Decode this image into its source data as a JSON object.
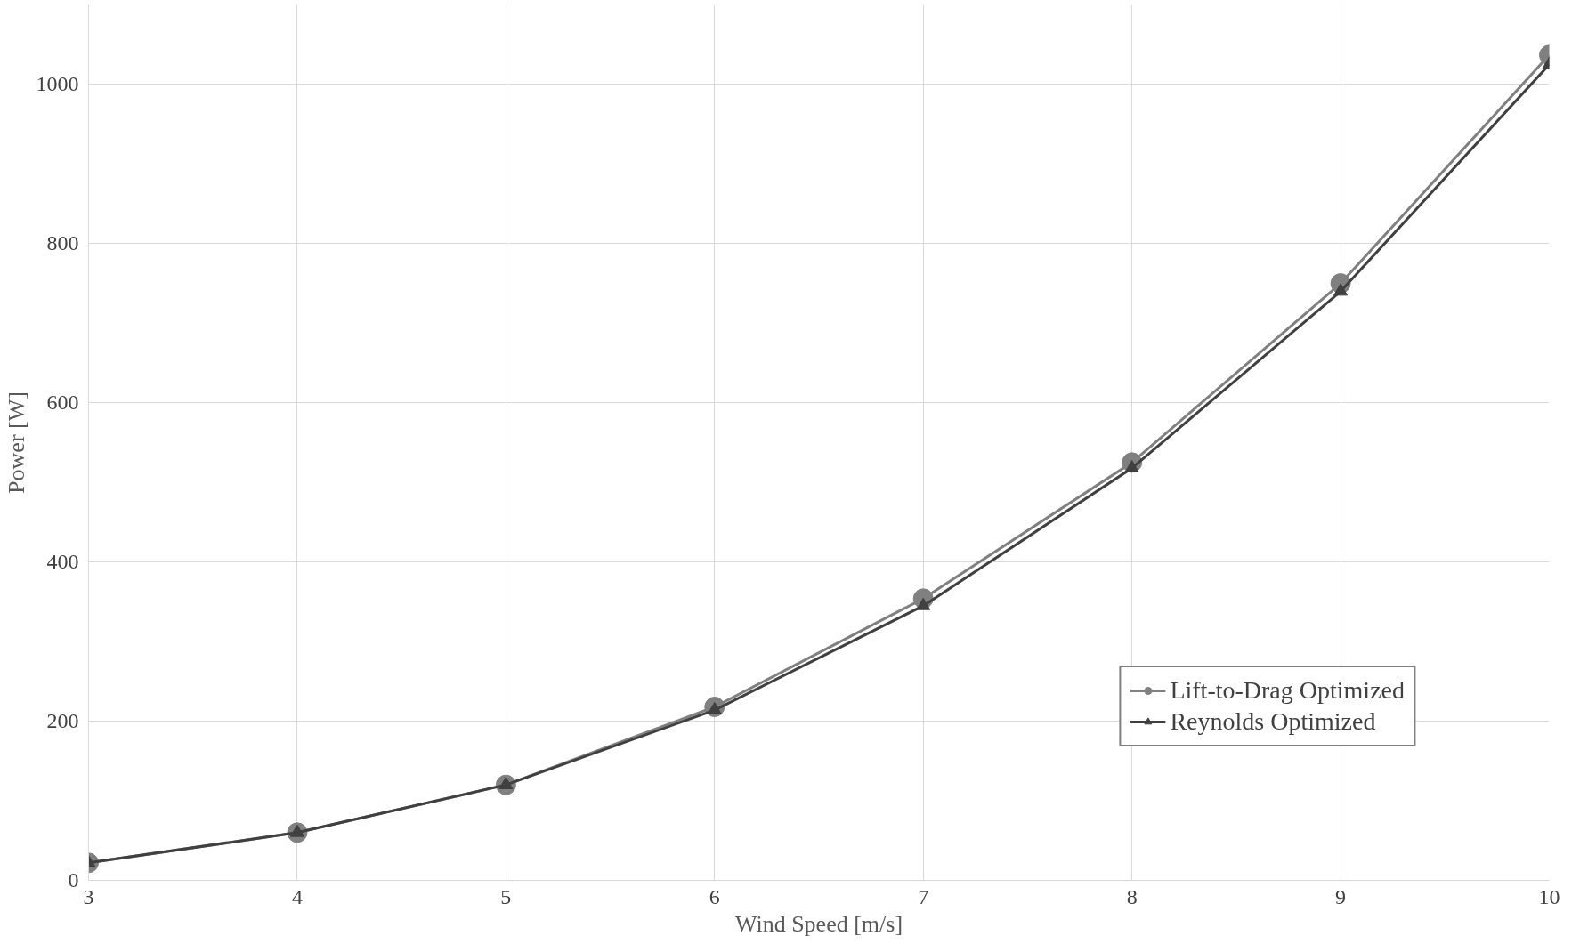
{
  "chart_data": {
    "type": "line",
    "xlabel": "Wind Speed [m/s]",
    "ylabel": "Power [W]",
    "x": [
      3,
      4,
      5,
      6,
      7,
      8,
      9,
      10
    ],
    "series": [
      {
        "name": "Lift-to-Drag Optimized",
        "color": "#808080",
        "marker": "circle",
        "values": [
          22,
          60,
          120,
          218,
          354,
          525,
          750,
          1037
        ]
      },
      {
        "name": "Reynolds Optimized",
        "color": "#404040",
        "marker": "triangle",
        "values": [
          22,
          60,
          120,
          214,
          345,
          518,
          740,
          1025
        ]
      }
    ],
    "xlim": [
      3,
      10
    ],
    "xticks": [
      3,
      4,
      5,
      6,
      7,
      8,
      9,
      10
    ],
    "ylim": [
      0,
      1100
    ],
    "yticks": [
      0,
      200,
      400,
      600,
      800,
      1000
    ],
    "grid": true,
    "legend": "bottom right",
    "line_style": "solid"
  }
}
